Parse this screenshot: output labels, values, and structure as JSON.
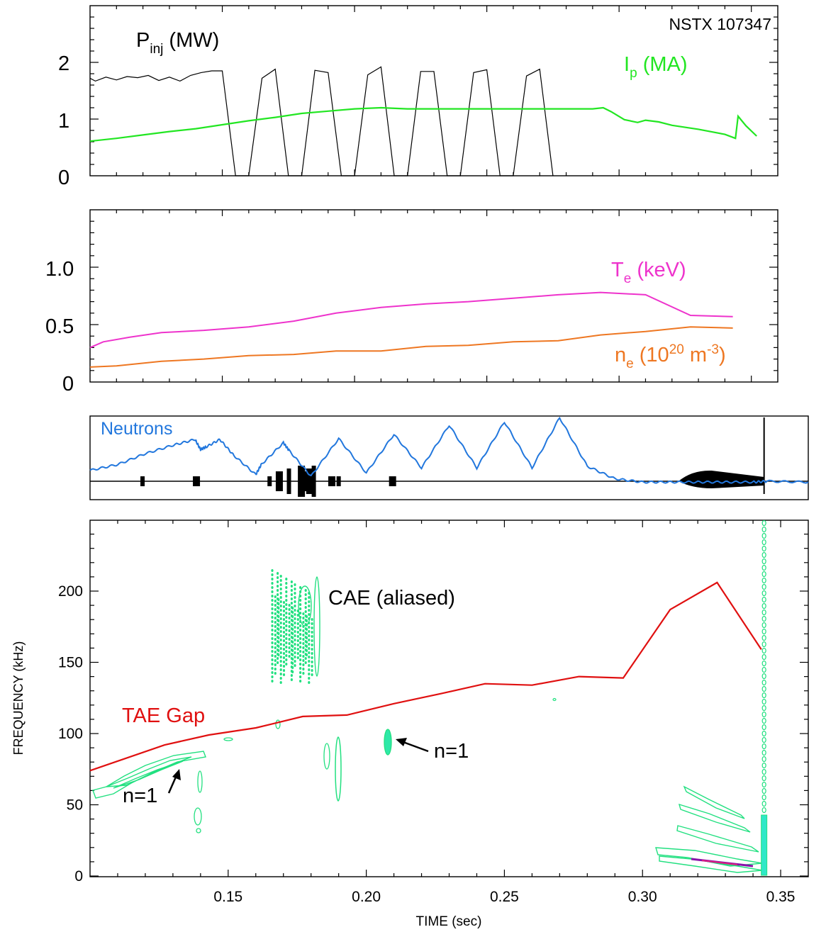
{
  "chart_data": [
    {
      "type": "line",
      "panel": "top",
      "annotation": "NSTX 107347",
      "yticks": [
        "0",
        "1",
        "2"
      ],
      "ylim": [
        0,
        3.0
      ],
      "xlim": [
        0.1,
        0.36
      ],
      "series": [
        {
          "name": "P_inj (MW)",
          "label_main": "P",
          "label_sub": "inj",
          "label_rest": " (MW)",
          "color": "#000000",
          "x": [
            0.1,
            0.102,
            0.106,
            0.11,
            0.114,
            0.118,
            0.122,
            0.126,
            0.13,
            0.134,
            0.138,
            0.142,
            0.146,
            0.15,
            0.155,
            0.16,
            0.165,
            0.17,
            0.175,
            0.18,
            0.185,
            0.19,
            0.195,
            0.2,
            0.205,
            0.21,
            0.215,
            0.22,
            0.225,
            0.23,
            0.235,
            0.24,
            0.245,
            0.25,
            0.255,
            0.26,
            0.265,
            0.27,
            0.275
          ],
          "y": [
            1.72,
            1.67,
            1.74,
            1.69,
            1.75,
            1.73,
            1.77,
            1.68,
            1.74,
            1.67,
            1.77,
            1.82,
            1.85,
            1.85,
            0,
            0,
            1.72,
            1.88,
            0,
            0,
            1.86,
            1.82,
            0,
            0,
            1.78,
            1.92,
            0,
            0,
            1.84,
            1.84,
            0,
            0,
            1.82,
            1.87,
            0,
            0,
            1.76,
            1.88,
            0
          ]
        },
        {
          "name": "I_p (MA)",
          "label_main": "I",
          "label_sub": "p",
          "label_rest": " (MA)",
          "color": "#22e622",
          "x": [
            0.1,
            0.11,
            0.12,
            0.13,
            0.14,
            0.15,
            0.16,
            0.17,
            0.18,
            0.19,
            0.2,
            0.21,
            0.22,
            0.23,
            0.24,
            0.25,
            0.26,
            0.27,
            0.28,
            0.29,
            0.294,
            0.297,
            0.302,
            0.307,
            0.31,
            0.315,
            0.32,
            0.33,
            0.34,
            0.344,
            0.345,
            0.348,
            0.352
          ],
          "y": [
            0.61,
            0.66,
            0.72,
            0.78,
            0.83,
            0.9,
            0.97,
            1.03,
            1.1,
            1.14,
            1.18,
            1.2,
            1.18,
            1.18,
            1.18,
            1.18,
            1.18,
            1.18,
            1.18,
            1.18,
            1.2,
            1.13,
            0.99,
            0.94,
            0.98,
            0.95,
            0.89,
            0.82,
            0.73,
            0.66,
            1.05,
            0.88,
            0.7
          ]
        }
      ]
    },
    {
      "type": "line",
      "panel": "second",
      "yticks": [
        "0",
        "0.5",
        "1.0"
      ],
      "ylim": [
        0,
        1.5
      ],
      "xlim": [
        0.1,
        0.36
      ],
      "series": [
        {
          "name": "T_e (keV)",
          "label_main": "T",
          "label_sub": "e",
          "label_rest": " (keV)",
          "color": "#ee33cc",
          "x": [
            0.1,
            0.105,
            0.115,
            0.127,
            0.143,
            0.16,
            0.177,
            0.193,
            0.21,
            0.227,
            0.243,
            0.26,
            0.277,
            0.293,
            0.31,
            0.327,
            0.343
          ],
          "y": [
            0.3,
            0.35,
            0.39,
            0.43,
            0.45,
            0.48,
            0.53,
            0.6,
            0.65,
            0.68,
            0.7,
            0.73,
            0.76,
            0.78,
            0.76,
            0.58,
            0.57
          ]
        },
        {
          "name": "n_e (10^20 m^-3)",
          "label_main": "n",
          "label_sub": "e",
          "label_rest": " (10",
          "label_sup": "20",
          "label_rest2": " m",
          "label_sup2": "-3",
          "label_end": ")",
          "color": "#ee7722",
          "x": [
            0.1,
            0.11,
            0.127,
            0.143,
            0.16,
            0.177,
            0.193,
            0.21,
            0.227,
            0.243,
            0.26,
            0.277,
            0.293,
            0.31,
            0.327,
            0.343
          ],
          "y": [
            0.13,
            0.14,
            0.18,
            0.2,
            0.23,
            0.24,
            0.27,
            0.27,
            0.31,
            0.32,
            0.35,
            0.36,
            0.41,
            0.44,
            0.48,
            0.47
          ]
        }
      ]
    },
    {
      "type": "line",
      "panel": "third",
      "xlim": [
        0.1,
        0.36
      ],
      "ylim": [
        0,
        1
      ],
      "series": [
        {
          "name": "Neutrons",
          "color": "#2277dd",
          "x": [
            0.1,
            0.11,
            0.12,
            0.13,
            0.138,
            0.14,
            0.142,
            0.147,
            0.152,
            0.16,
            0.162,
            0.17,
            0.172,
            0.18,
            0.19,
            0.2,
            0.21,
            0.22,
            0.23,
            0.24,
            0.25,
            0.26,
            0.27,
            0.28,
            0.29,
            0.3,
            0.31,
            0.32,
            0.33,
            0.34,
            0.345,
            0.36
          ],
          "y": [
            0.35,
            0.42,
            0.55,
            0.65,
            0.72,
            0.6,
            0.63,
            0.72,
            0.53,
            0.3,
            0.42,
            0.68,
            0.59,
            0.28,
            0.73,
            0.32,
            0.78,
            0.38,
            0.89,
            0.38,
            0.93,
            0.38,
            0.98,
            0.4,
            0.25,
            0.21,
            0.21,
            0.21,
            0.21,
            0.21,
            0.22,
            0.21
          ]
        },
        {
          "name": "",
          "color": "#000000",
          "x": [
            0.1,
            0.36
          ],
          "y": [
            0.22,
            0.22
          ]
        }
      ],
      "bursts_black": [
        0.119,
        0.138,
        0.165,
        0.168,
        0.172,
        0.176,
        0.178,
        0.179,
        0.181,
        0.187,
        0.19,
        0.209
      ],
      "spike_x": 0.344
    },
    {
      "type": "line",
      "panel": "bottom",
      "xlabel": "TIME (sec)",
      "ylabel": "FREQUENCY (kHz)",
      "xlim": [
        0.1,
        0.36
      ],
      "ylim": [
        0,
        250
      ],
      "xticks": [
        0.15,
        0.2,
        0.25,
        0.3,
        0.35
      ],
      "xtick_labels": [
        "0.15",
        "0.20",
        "0.25",
        "0.30",
        "0.35"
      ],
      "yticks": [
        0,
        50,
        100,
        150,
        200
      ],
      "ytick_labels": [
        "0",
        "50",
        "100",
        "150",
        "200"
      ],
      "series": [
        {
          "name": "TAE Gap",
          "color": "#e01010",
          "x": [
            0.1,
            0.127,
            0.143,
            0.16,
            0.177,
            0.193,
            0.21,
            0.227,
            0.243,
            0.26,
            0.277,
            0.293,
            0.31,
            0.327,
            0.343
          ],
          "y": [
            74,
            92,
            99,
            104,
            112,
            113,
            121,
            128,
            135,
            134,
            140,
            139,
            187,
            206,
            159
          ]
        }
      ],
      "annotations": [
        "CAE (aliased)",
        "n=1",
        "n=1"
      ],
      "contour_color": "#22e080"
    }
  ]
}
